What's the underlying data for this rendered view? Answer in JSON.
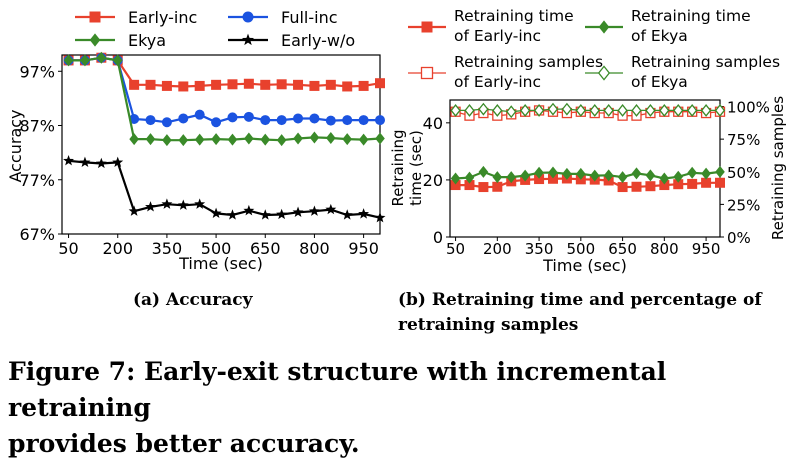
{
  "chart_data": [
    {
      "type": "line",
      "xlabel": "Time (sec)",
      "ylabel": "Accuracy",
      "x_ticks": [
        50,
        200,
        350,
        500,
        650,
        800,
        950
      ],
      "y_ticks": [
        "67%",
        "77%",
        "87%",
        "97%"
      ],
      "ylim": [
        67,
        100
      ],
      "xlim": [
        30,
        1000
      ],
      "legend_position": "top",
      "series": [
        {
          "name": "Early-inc",
          "color": "#e8412d",
          "marker": "square",
          "x": [
            50,
            100,
            150,
            200,
            250,
            300,
            350,
            400,
            450,
            500,
            550,
            600,
            650,
            700,
            750,
            800,
            850,
            900,
            950,
            1000
          ],
          "values": [
            99,
            99,
            99.5,
            99,
            94.5,
            94.5,
            94.3,
            94.2,
            94.3,
            94.5,
            94.6,
            94.7,
            94.5,
            94.6,
            94.5,
            94.3,
            94.5,
            94.2,
            94.3,
            94.8
          ]
        },
        {
          "name": "Full-inc",
          "color": "#1b53e0",
          "marker": "circle",
          "x": [
            50,
            100,
            150,
            200,
            250,
            300,
            350,
            400,
            450,
            500,
            550,
            600,
            650,
            700,
            750,
            800,
            850,
            900,
            950,
            1000
          ],
          "values": [
            99,
            99,
            99.5,
            99,
            88.2,
            88,
            87.6,
            88.3,
            89,
            87.6,
            88.5,
            88.6,
            88,
            88,
            88.3,
            88.3,
            87.9,
            88,
            88,
            88
          ]
        },
        {
          "name": "Ekya",
          "color": "#3a8a29",
          "marker": "diamond",
          "x": [
            50,
            100,
            150,
            200,
            250,
            300,
            350,
            400,
            450,
            500,
            550,
            600,
            650,
            700,
            750,
            800,
            850,
            900,
            950,
            1000
          ],
          "values": [
            99,
            99,
            99.5,
            99,
            84.5,
            84.5,
            84.3,
            84.3,
            84.4,
            84.5,
            84.4,
            84.6,
            84.4,
            84.3,
            84.6,
            84.8,
            84.7,
            84.5,
            84.4,
            84.6
          ]
        },
        {
          "name": "Early-w/o",
          "color": "#000000",
          "marker": "star",
          "x": [
            50,
            100,
            150,
            200,
            250,
            300,
            350,
            400,
            450,
            500,
            550,
            600,
            650,
            700,
            750,
            800,
            850,
            900,
            950,
            1000
          ],
          "values": [
            80.5,
            80.2,
            80,
            80.2,
            71.2,
            72,
            72.5,
            72.3,
            72.5,
            70.8,
            70.5,
            71.3,
            70.5,
            70.6,
            71,
            71.2,
            71.5,
            70.5,
            70.7,
            70
          ]
        }
      ]
    },
    {
      "type": "line",
      "xlabel": "Time (sec)",
      "ylabel": "Retraining time (sec)",
      "ylabel_lines": [
        "Retraining",
        "time (sec)"
      ],
      "y2label": "Retraining samples",
      "x_ticks": [
        50,
        200,
        350,
        500,
        650,
        800,
        950
      ],
      "y_ticks": [
        0,
        20,
        40
      ],
      "y2_ticks": [
        "0%",
        "25%",
        "50%",
        "75%",
        "100%"
      ],
      "ylim": [
        0,
        48
      ],
      "y2lim": [
        0,
        105
      ],
      "xlim": [
        30,
        1000
      ],
      "legend_position": "top",
      "series": [
        {
          "name_lines": [
            "Retraining time",
            "of Early-inc"
          ],
          "color": "#e8412d",
          "marker": "square",
          "axis": "left",
          "x": [
            50,
            100,
            150,
            200,
            250,
            300,
            350,
            400,
            450,
            500,
            550,
            600,
            650,
            700,
            750,
            800,
            850,
            900,
            950,
            1000
          ],
          "values": [
            18.2,
            18.2,
            17.5,
            17.6,
            19.5,
            20,
            20.3,
            20.4,
            20.5,
            20.2,
            20.1,
            19.8,
            17.5,
            17.6,
            17.8,
            18.2,
            18.5,
            18.6,
            19,
            19
          ]
        },
        {
          "name_lines": [
            "Retraining time",
            "of Ekya"
          ],
          "color": "#3a8a29",
          "marker": "diamond",
          "axis": "left",
          "x": [
            50,
            100,
            150,
            200,
            250,
            300,
            350,
            400,
            450,
            500,
            550,
            600,
            650,
            700,
            750,
            800,
            850,
            900,
            950,
            1000
          ],
          "values": [
            20.5,
            20.8,
            22.8,
            21,
            21,
            21.5,
            22.5,
            22.6,
            22.1,
            22.1,
            21.5,
            21.6,
            21,
            22.3,
            21.6,
            20.5,
            21.1,
            22.5,
            22.2,
            22.8
          ]
        },
        {
          "name_lines": [
            "Retraining samples",
            "of Early-inc"
          ],
          "color": "#e8412d",
          "marker": "square-open",
          "axis": "right",
          "x": [
            50,
            100,
            150,
            200,
            250,
            300,
            350,
            400,
            450,
            500,
            550,
            600,
            650,
            700,
            750,
            800,
            850,
            900,
            950,
            1000
          ],
          "values": [
            96,
            93,
            95,
            93,
            94,
            96,
            97,
            96,
            95,
            96,
            95,
            95,
            93,
            93,
            95,
            96,
            96,
            96,
            95,
            96
          ]
        },
        {
          "name_lines": [
            "Retraining samples",
            "of Ekya"
          ],
          "color": "#3a8a29",
          "marker": "diamond-open",
          "axis": "right",
          "x": [
            50,
            100,
            150,
            200,
            250,
            300,
            350,
            400,
            450,
            500,
            550,
            600,
            650,
            700,
            750,
            800,
            850,
            900,
            950,
            1000
          ],
          "values": [
            97,
            97,
            98,
            97,
            96,
            97,
            97,
            98,
            98,
            97,
            97,
            97,
            97,
            97,
            97,
            97,
            97,
            97,
            97,
            97
          ]
        }
      ]
    }
  ],
  "subcaption_a": "(a) Accuracy",
  "subcaption_b_lines": [
    "(b) Retraining time and percentage of",
    "retraining samples"
  ],
  "caption_lines": [
    "Figure 7: Early-exit structure with incremental retraining",
    "provides better accuracy."
  ]
}
